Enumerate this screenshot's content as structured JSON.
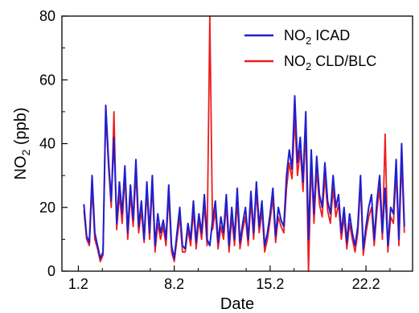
{
  "chart_data": {
    "type": "line",
    "xlabel": "Date",
    "ylabel": {
      "base": "NO",
      "sub": "2",
      "rest": " (ppb)"
    },
    "xlim": [
      0,
      25.6
    ],
    "ylim": [
      0,
      80
    ],
    "xticks": [
      {
        "value": 1.2,
        "label": "1.2"
      },
      {
        "value": 8.2,
        "label": "8.2"
      },
      {
        "value": 15.2,
        "label": "15.2"
      },
      {
        "value": 22.2,
        "label": "22.2"
      }
    ],
    "yticks": [
      0,
      20,
      40,
      60,
      80
    ],
    "x_minor_step": 1.75,
    "y_minor_step": 10,
    "series": [
      {
        "name": {
          "base": "NO",
          "sub": "2",
          "rest": " ICAD"
        },
        "color": "#1f1fcf",
        "x": [
          1.6,
          1.8,
          2.0,
          2.2,
          2.4,
          2.6,
          2.8,
          3.0,
          3.2,
          3.4,
          3.6,
          3.8,
          4.0,
          4.2,
          4.4,
          4.6,
          4.8,
          5.0,
          5.2,
          5.4,
          5.6,
          5.8,
          6.0,
          6.2,
          6.4,
          6.6,
          6.8,
          7.0,
          7.2,
          7.4,
          7.6,
          7.8,
          8.0,
          8.2,
          8.4,
          8.6,
          8.8,
          9.0,
          9.2,
          9.4,
          9.6,
          9.8,
          10.0,
          10.2,
          10.4,
          10.6,
          10.8,
          11.0,
          11.2,
          11.4,
          11.6,
          11.8,
          12.0,
          12.2,
          12.4,
          12.6,
          12.8,
          13.0,
          13.2,
          13.4,
          13.6,
          13.8,
          14.0,
          14.2,
          14.4,
          14.6,
          14.8,
          15.0,
          15.2,
          15.4,
          15.6,
          15.8,
          16.0,
          16.2,
          16.4,
          16.6,
          16.8,
          17.0,
          17.2,
          17.4,
          17.6,
          17.8,
          18.0,
          18.2,
          18.4,
          18.6,
          18.8,
          19.0,
          19.2,
          19.4,
          19.6,
          19.8,
          20.0,
          20.2,
          20.4,
          20.6,
          20.8,
          21.0,
          21.2,
          21.4,
          21.6,
          21.8,
          22.0,
          22.2,
          22.4,
          22.6,
          22.8,
          23.0,
          23.2,
          23.4,
          23.6,
          23.8,
          24.0,
          24.2,
          24.4,
          24.6,
          24.8,
          25.0
        ],
        "y": [
          21,
          11,
          9,
          30,
          12,
          8,
          4,
          6,
          52,
          35,
          22,
          42,
          15,
          28,
          18,
          33,
          12,
          27,
          16,
          35,
          14,
          22,
          10,
          28,
          12,
          30,
          8,
          18,
          12,
          16,
          10,
          27,
          8,
          4,
          12,
          20,
          8,
          7,
          15,
          10,
          22,
          9,
          18,
          12,
          24,
          10,
          8,
          16,
          22,
          9,
          17,
          12,
          24,
          8,
          20,
          10,
          26,
          9,
          15,
          20,
          10,
          25,
          12,
          28,
          14,
          22,
          8,
          12,
          18,
          26,
          11,
          20,
          16,
          14,
          30,
          38,
          32,
          55,
          34,
          42,
          28,
          50,
          10,
          38,
          18,
          36,
          24,
          20,
          34,
          22,
          18,
          30,
          20,
          24,
          12,
          20,
          9,
          18,
          12,
          8,
          14,
          30,
          7,
          14,
          20,
          24,
          10,
          22,
          30,
          12,
          26,
          8,
          20,
          18,
          35,
          10,
          40,
          14
        ]
      },
      {
        "name": {
          "base": "NO",
          "sub": "2",
          "rest": " CLD/BLC"
        },
        "color": "#ee1c1c",
        "x": [
          1.6,
          1.8,
          2.0,
          2.2,
          2.4,
          2.6,
          2.8,
          3.0,
          3.2,
          3.4,
          3.6,
          3.8,
          4.0,
          4.2,
          4.4,
          4.6,
          4.8,
          5.0,
          5.2,
          5.4,
          5.6,
          5.8,
          6.0,
          6.2,
          6.4,
          6.6,
          6.8,
          7.0,
          7.2,
          7.4,
          7.6,
          7.8,
          8.0,
          8.2,
          8.4,
          8.6,
          8.8,
          9.0,
          9.2,
          9.4,
          9.6,
          9.8,
          10.0,
          10.2,
          10.4,
          10.6,
          10.8,
          11.0,
          11.2,
          11.4,
          11.6,
          11.8,
          12.0,
          12.2,
          12.4,
          12.6,
          12.8,
          13.0,
          13.2,
          13.4,
          13.6,
          13.8,
          14.0,
          14.2,
          14.4,
          14.6,
          14.8,
          15.0,
          15.2,
          15.4,
          15.6,
          15.8,
          16.0,
          16.2,
          16.4,
          16.6,
          16.8,
          17.0,
          17.2,
          17.4,
          17.6,
          17.8,
          18.0,
          18.2,
          18.4,
          18.6,
          18.8,
          19.0,
          19.2,
          19.4,
          19.6,
          19.8,
          20.0,
          20.2,
          20.4,
          20.6,
          20.8,
          21.0,
          21.2,
          21.4,
          21.6,
          21.8,
          22.0,
          22.2,
          22.4,
          22.6,
          22.8,
          23.0,
          23.2,
          23.4,
          23.6,
          23.8,
          24.0,
          24.2,
          24.4,
          24.6,
          24.8,
          25.0
        ],
        "y": [
          19,
          10,
          8,
          26,
          10,
          7,
          3,
          5,
          50,
          33,
          20,
          50,
          13,
          24,
          15,
          30,
          10,
          24,
          14,
          31,
          12,
          19,
          9,
          25,
          10,
          27,
          6,
          15,
          10,
          14,
          8,
          24,
          6,
          3,
          10,
          17,
          6,
          6,
          13,
          8,
          19,
          7,
          16,
          10,
          21,
          8,
          80,
          13,
          19,
          7,
          14,
          10,
          21,
          6,
          17,
          8,
          22,
          7,
          13,
          17,
          8,
          22,
          10,
          25,
          12,
          19,
          6,
          10,
          16,
          23,
          9,
          17,
          14,
          12,
          26,
          34,
          29,
          48,
          30,
          38,
          25,
          45,
          0,
          34,
          15,
          32,
          21,
          17,
          30,
          19,
          15,
          26,
          17,
          21,
          10,
          17,
          7,
          15,
          10,
          6,
          12,
          27,
          5,
          12,
          17,
          20,
          8,
          19,
          26,
          10,
          43,
          6,
          17,
          15,
          31,
          8,
          35,
          12
        ]
      }
    ],
    "legend": "top-right",
    "grid": false
  }
}
